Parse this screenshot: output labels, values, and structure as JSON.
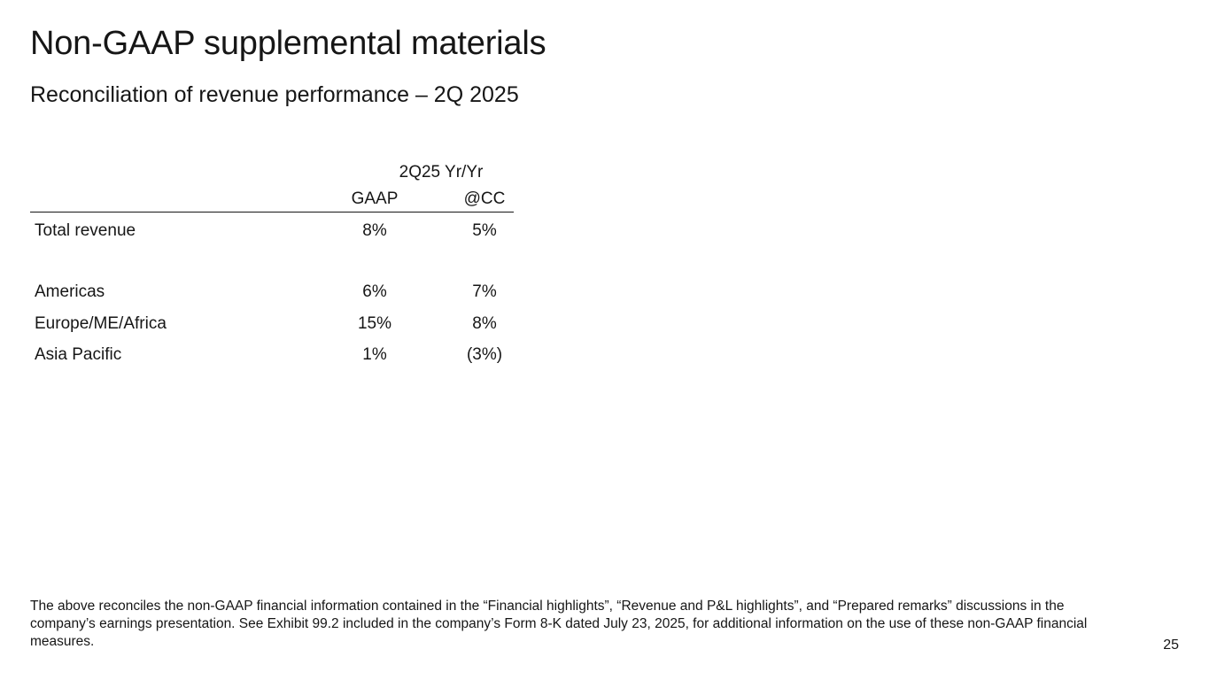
{
  "slide": {
    "title": "Non-GAAP supplemental materials",
    "subtitle": "Reconciliation of revenue performance – 2Q 2025",
    "page_number": "25"
  },
  "table": {
    "group_header": "2Q25 Yr/Yr",
    "columns": [
      "GAAP",
      "@CC"
    ],
    "rows": [
      {
        "label": "Total revenue",
        "gaap": "8%",
        "cc": "5%"
      },
      {
        "label": "Americas",
        "gaap": "6%",
        "cc": "7%"
      },
      {
        "label": "Europe/ME/Africa",
        "gaap": "15%",
        "cc": "8%"
      },
      {
        "label": "Asia Pacific",
        "gaap": "1%",
        "cc": "(3%)"
      }
    ]
  },
  "footnote": "The above reconciles the non-GAAP financial information contained in the “Financial highlights”, “Revenue and P&L highlights”, and “Prepared remarks” discussions in the company’s earnings presentation. See Exhibit 99.2 included in the company’s Form 8-K dated July 23, 2025, for additional information on the use of these non-GAAP financial measures."
}
